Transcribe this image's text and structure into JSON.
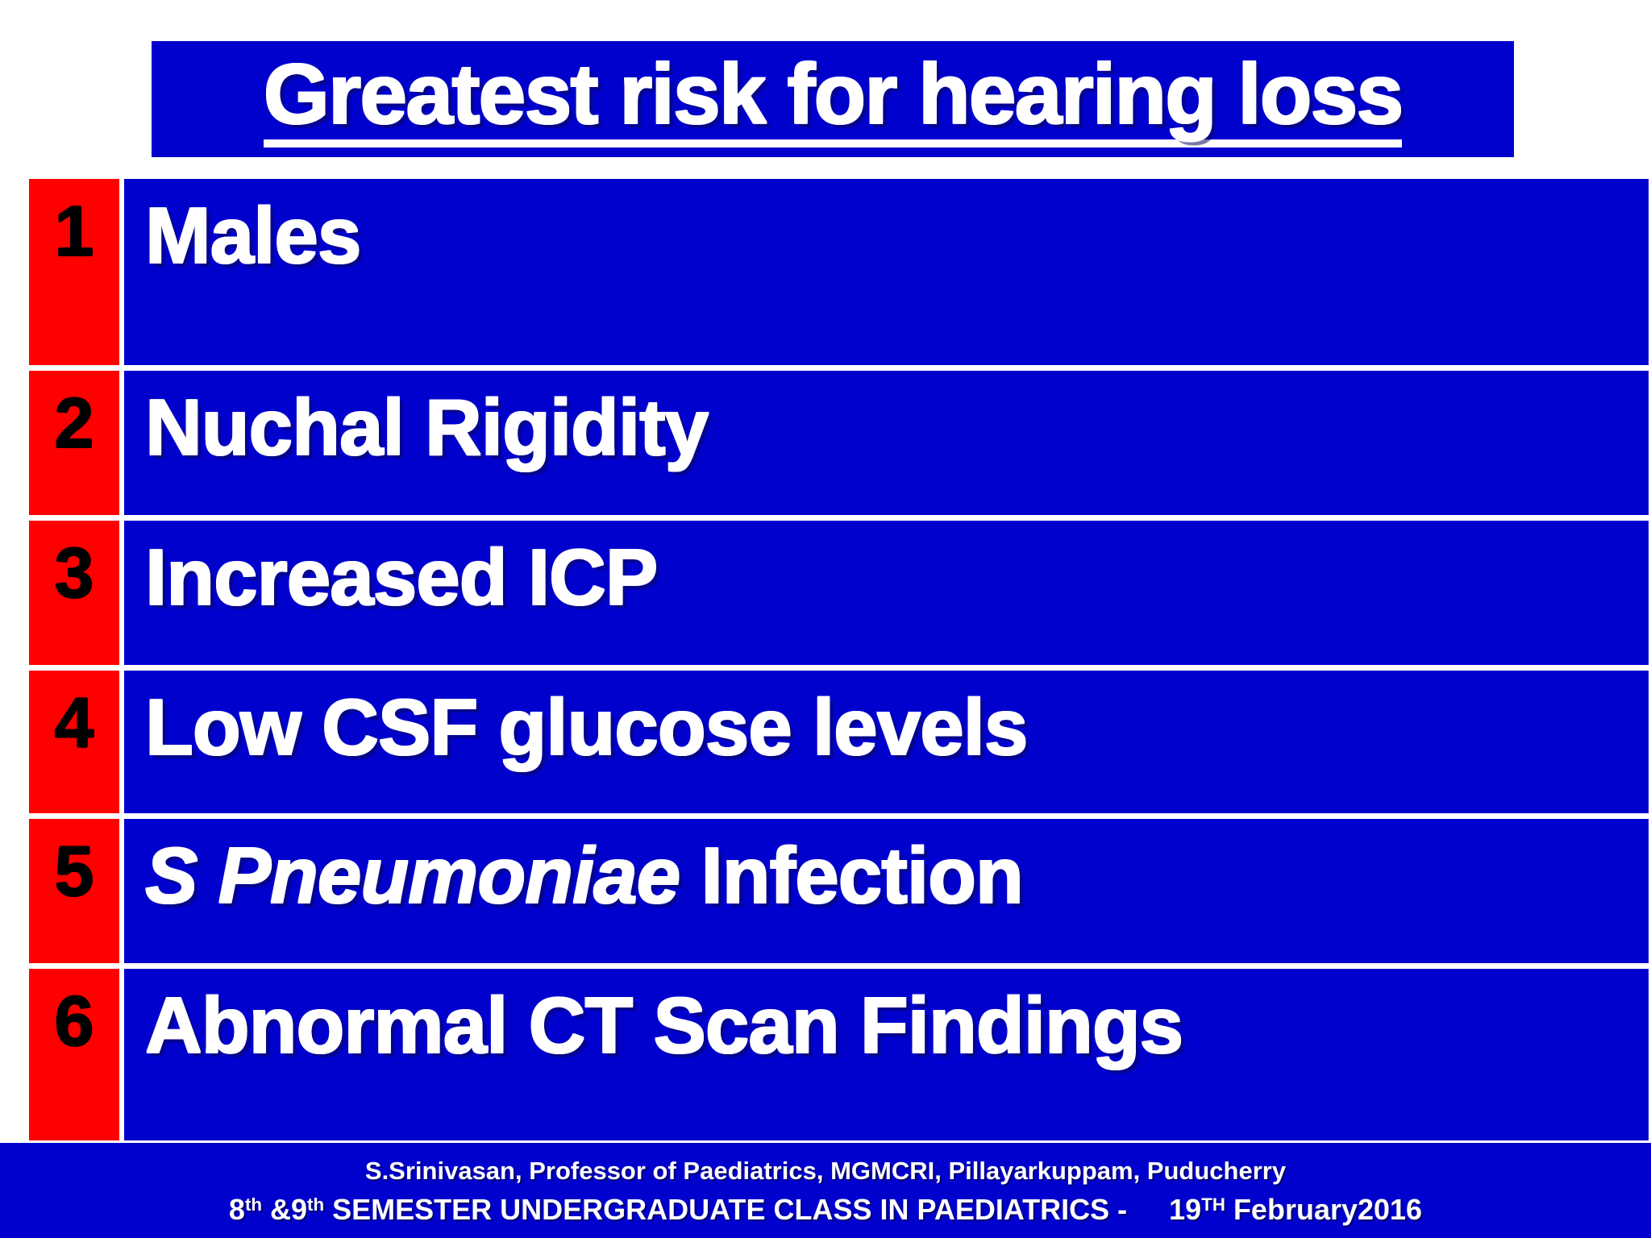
{
  "slide": {
    "title": "Greatest risk for hearing loss",
    "rows": [
      {
        "num": "1",
        "label": "Males"
      },
      {
        "num": "2",
        "label": "Nuchal Rigidity"
      },
      {
        "num": "3",
        "label": "Increased ICP"
      },
      {
        "num": "4",
        "label": "Low CSF glucose levels"
      },
      {
        "num": "5",
        "label_italic": "S Pneumoniae",
        "label_rest": " Infection"
      },
      {
        "num": "6",
        "label": "Abnormal CT Scan Findings"
      }
    ],
    "footer": {
      "line1": "S.Srinivasan, Professor of Paediatrics, MGMCRI, Pillayarkuppam, Puducherry",
      "line2": {
        "p1": "8",
        "s1": "th",
        "p2": " &9",
        "s2": "th",
        "p3": " SEMESTER UNDERGRADUATE CLASS IN PAEDIATRICS -",
        "p4": "19",
        "s3": "TH",
        "p5": " February2016"
      }
    },
    "colors": {
      "blue": "#0101CD",
      "red": "#FF0000",
      "text_light": "#FFFFFF",
      "text_dark": "#000000"
    }
  }
}
